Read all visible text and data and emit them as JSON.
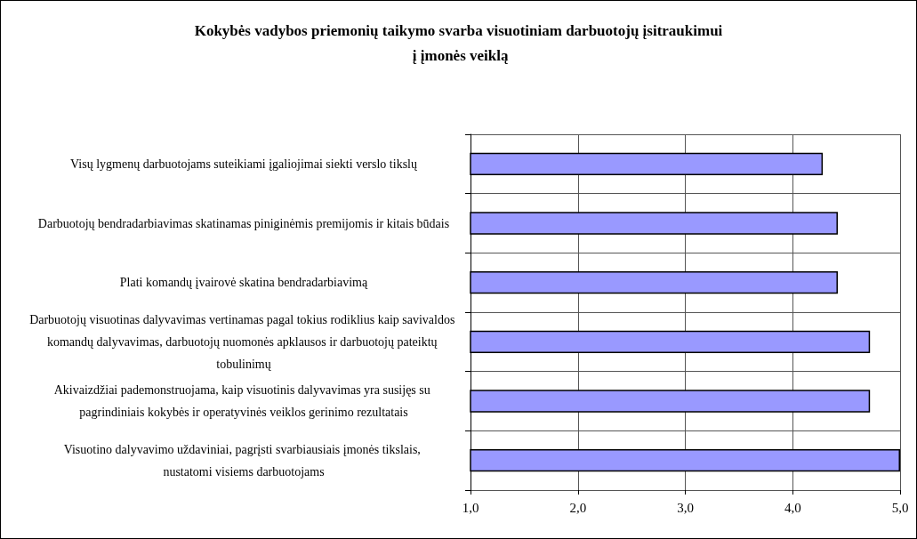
{
  "chart_data": {
    "type": "bar",
    "orientation": "horizontal",
    "title": "Kokybės vadybos priemonių taikymo svarba visuotiniam darbuotojų įsitraukimui į įmonės veiklą",
    "categories": [
      "Visų lygmenų darbuotojams suteikiami įgaliojimai siekti verslo tikslų",
      "Darbuotojų bendradarbiavimas skatinamas piniginėmis premijomis ir kitais būdais",
      "Plati komandų įvairovė skatina bendradarbiavimą",
      "Darbuotojų visuotinas dalyvavimas vertinamas pagal tokius rodiklius kaip savivaldos komandų dalyvavimas, darbuotojų nuomonės apklausos ir darbuotojų pateiktų tobulinimų",
      "Akivaizdžiai pademonstruojama, kaip visuotinis dalyvavimas yra susijęs su pagrindiniais kokybės ir operatyvinės veiklos gerinimo rezultatais",
      "Visuotino dalyvavimo uždaviniai, pagrįsti svarbiausiais įmonės tikslais, nustatomi visiems darbuotojams"
    ],
    "values": [
      4.28,
      4.42,
      4.42,
      4.72,
      4.72,
      5.0
    ],
    "color": "#9999ff",
    "xlim": [
      1,
      5
    ],
    "xticks": [
      {
        "value": 1,
        "label": "1,0"
      },
      {
        "value": 2,
        "label": "2,0"
      },
      {
        "value": 3,
        "label": "3,0"
      },
      {
        "value": 4,
        "label": "4,0"
      },
      {
        "value": 5,
        "label": "5,0"
      }
    ],
    "grid": true
  }
}
